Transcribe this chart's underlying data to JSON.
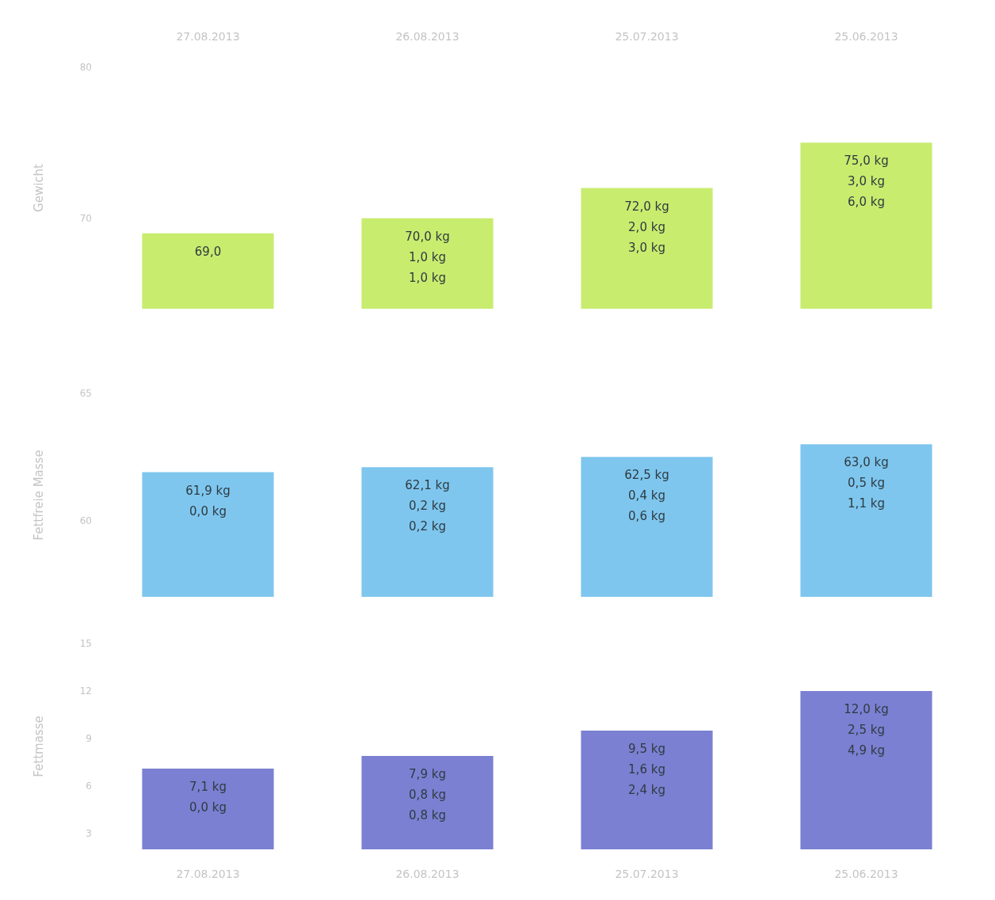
{
  "chart_data": [
    {
      "type": "bar",
      "ylabel": "Gewicht",
      "categories": [
        "27.08.2013",
        "26.08.2013",
        "25.07.2013",
        "25.06.2013"
      ],
      "values": [
        69.0,
        70.0,
        72.0,
        75.0
      ],
      "color": "#c8ec6e",
      "value_labels": [
        "69,0",
        "70,0 kg\n1,0 kg\n1,0 kg",
        "72,0 kg\n2,0 kg\n3,0 kg",
        "75,0 kg\n3,0 kg\n6,0 kg"
      ],
      "ylim": [
        64,
        80
      ],
      "yticks": [
        70,
        80
      ]
    },
    {
      "type": "bar",
      "ylabel": "Fettfreie Masse",
      "categories": [
        "27.08.2013",
        "26.08.2013",
        "25.07.2013",
        "25.06.2013"
      ],
      "values": [
        61.9,
        62.1,
        62.5,
        63.0
      ],
      "color": "#7ec6ee",
      "value_labels": [
        "61,9 kg\n0,0 kg",
        "62,1 kg\n0,2 kg\n0,2 kg",
        "62,5 kg\n0,4 kg\n0,6 kg",
        "63,0 kg\n0,5 kg\n1,1 kg"
      ],
      "ylim": [
        57,
        65
      ],
      "yticks": [
        60,
        65
      ],
      "tick_labels": "y"
    },
    {
      "type": "bar",
      "ylabel": "Fettmasse",
      "categories": [
        "27.08.2013",
        "26.08.2013",
        "25.07.2013",
        "25.06.2013"
      ],
      "values": [
        7.1,
        7.9,
        9.5,
        12.0
      ],
      "color": "#7b80d2",
      "value_labels": [
        "7,1 kg\n0,0 kg",
        "7,9 kg\n0,8 kg\n0,8 kg",
        "9,5 kg\n1,6 kg\n2,4 kg",
        "12,0 kg\n2,5 kg\n4,9 kg"
      ],
      "ylim": [
        2,
        15
      ],
      "yticks": [
        3,
        6,
        9,
        12,
        15
      ]
    }
  ]
}
